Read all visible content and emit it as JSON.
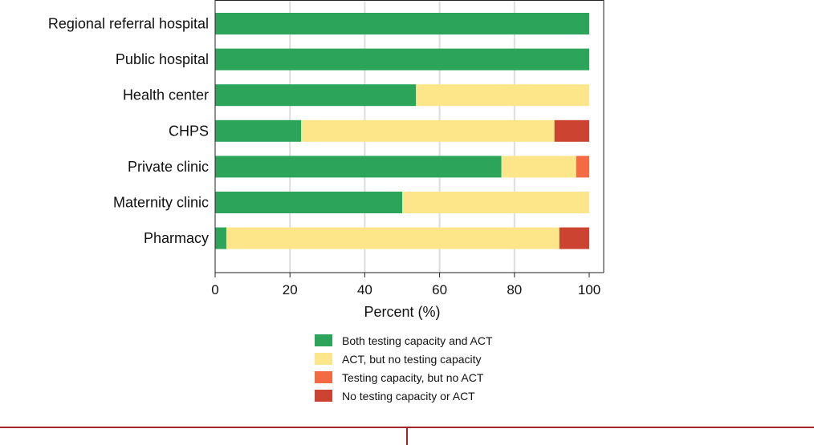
{
  "chart_data": {
    "type": "bar",
    "orientation": "horizontal",
    "stacked": true,
    "categories": [
      "Regional referral hospital",
      "Public hospital",
      "Health center",
      "CHPS",
      "Private clinic",
      "Maternity clinic",
      "Pharmacy"
    ],
    "series": [
      {
        "name": "Both testing capacity and ACT",
        "color": "#2ca55a",
        "values": [
          100,
          100,
          53.7,
          23,
          76.5,
          50,
          3
        ]
      },
      {
        "name": "ACT, but no testing capacity",
        "color": "#fde68a",
        "values": [
          0,
          0,
          46.3,
          67.7,
          20,
          50,
          89
        ]
      },
      {
        "name": "Testing capacity, but no ACT",
        "color": "#f26b43",
        "values": [
          0,
          0,
          0,
          0,
          3.5,
          0,
          0
        ]
      },
      {
        "name": "No testing capacity or ACT",
        "color": "#cc4331",
        "values": [
          0,
          0,
          0,
          9.3,
          0,
          0,
          8
        ]
      }
    ],
    "xlabel": "Percent (%)",
    "xlim": [
      0,
      100
    ],
    "xticks": [
      "0",
      "20",
      "40",
      "60",
      "80",
      "100"
    ],
    "grid": true,
    "legend_position": "bottom"
  }
}
